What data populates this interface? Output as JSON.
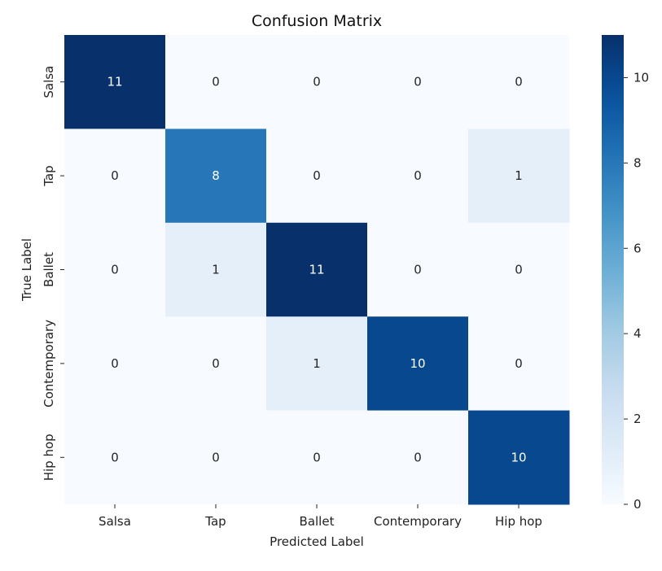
{
  "chart_data": {
    "type": "heatmap",
    "title": "Confusion Matrix",
    "xlabel": "Predicted Label",
    "ylabel": "True Label",
    "x_categories": [
      "Salsa",
      "Tap",
      "Ballet",
      "Contemporary",
      "Hip hop"
    ],
    "y_categories": [
      "Salsa",
      "Tap",
      "Ballet",
      "Contemporary",
      "Hip hop"
    ],
    "values": [
      [
        11,
        0,
        0,
        0,
        0
      ],
      [
        0,
        8,
        0,
        0,
        1
      ],
      [
        0,
        1,
        11,
        0,
        0
      ],
      [
        0,
        0,
        1,
        10,
        0
      ],
      [
        0,
        0,
        0,
        0,
        10
      ]
    ],
    "vmin": 0,
    "vmax": 11,
    "colormap": "Blues",
    "colorbar_ticks": [
      0,
      2,
      4,
      6,
      8,
      10
    ]
  }
}
